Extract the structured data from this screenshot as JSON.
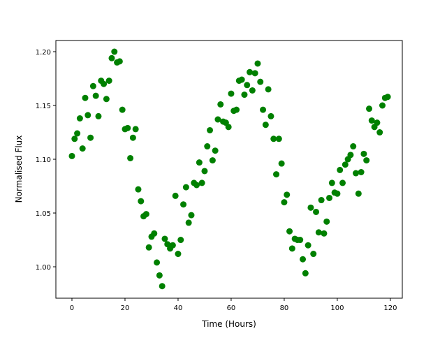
{
  "chart_data": {
    "type": "scatter",
    "title": "",
    "xlabel": "Time (Hours)",
    "ylabel": "Normalised Flux",
    "xlim": [
      -6.05,
      124.5
    ],
    "ylim": [
      0.9708,
      1.2104
    ],
    "xticks": [
      0,
      20,
      40,
      60,
      80,
      100,
      120
    ],
    "yticks": [
      1.0,
      1.05,
      1.1,
      1.15,
      1.2
    ],
    "ytick_labels": [
      "1.00",
      "1.05",
      "1.10",
      "1.15",
      "1.20"
    ],
    "grid": false,
    "marker_color": "#008000",
    "x": [
      0,
      1,
      2,
      3,
      4,
      5,
      6,
      7,
      8,
      9,
      10,
      11,
      12,
      13,
      14,
      15,
      16,
      17,
      18,
      19,
      20,
      21,
      22,
      23,
      24,
      25,
      26,
      27,
      28,
      29,
      30,
      31,
      32,
      33,
      34,
      35,
      36,
      37,
      38,
      39,
      40,
      41,
      42,
      43,
      44,
      45,
      46,
      47,
      48,
      49,
      50,
      51,
      52,
      53,
      54,
      55,
      56,
      57,
      58,
      59,
      60,
      61,
      62,
      63,
      64,
      65,
      66,
      67,
      68,
      69,
      70,
      71,
      72,
      73,
      74,
      75,
      76,
      77,
      78,
      79,
      80,
      81,
      82,
      83,
      84,
      85,
      86,
      87,
      88,
      89,
      90,
      91,
      92,
      93,
      94,
      95,
      96,
      97,
      98,
      99,
      100,
      101,
      102,
      103,
      104,
      105,
      106,
      107,
      108,
      109,
      110,
      111,
      112,
      113,
      114,
      115,
      116,
      117,
      118,
      119
    ],
    "y": [
      1.103,
      1.119,
      1.124,
      1.138,
      1.11,
      1.157,
      1.141,
      1.12,
      1.168,
      1.159,
      1.14,
      1.173,
      1.17,
      1.156,
      1.173,
      1.194,
      1.2,
      1.19,
      1.191,
      1.146,
      1.128,
      1.129,
      1.101,
      1.12,
      1.128,
      1.072,
      1.061,
      1.047,
      1.049,
      1.018,
      1.028,
      1.031,
      1.004,
      0.992,
      0.982,
      1.026,
      1.021,
      1.017,
      1.02,
      1.066,
      1.012,
      1.025,
      1.058,
      1.074,
      1.041,
      1.048,
      1.078,
      1.076,
      1.097,
      1.078,
      1.089,
      1.112,
      1.127,
      1.099,
      1.108,
      1.137,
      1.151,
      1.135,
      1.134,
      1.13,
      1.161,
      1.145,
      1.146,
      1.173,
      1.174,
      1.16,
      1.169,
      1.181,
      1.164,
      1.18,
      1.189,
      1.172,
      1.146,
      1.132,
      1.165,
      1.14,
      1.119,
      1.086,
      1.119,
      1.096,
      1.06,
      1.067,
      1.033,
      1.017,
      1.026,
      1.025,
      1.025,
      1.007,
      0.994,
      1.02,
      1.055,
      1.012,
      1.051,
      1.032,
      1.062,
      1.031,
      1.042,
      1.064,
      1.078,
      1.069,
      1.068,
      1.09,
      1.078,
      1.095,
      1.1,
      1.104,
      1.112,
      1.087,
      1.068,
      1.088,
      1.105,
      1.099,
      1.147,
      1.136,
      1.13,
      1.134,
      1.125,
      1.15,
      1.157,
      1.158
    ]
  }
}
